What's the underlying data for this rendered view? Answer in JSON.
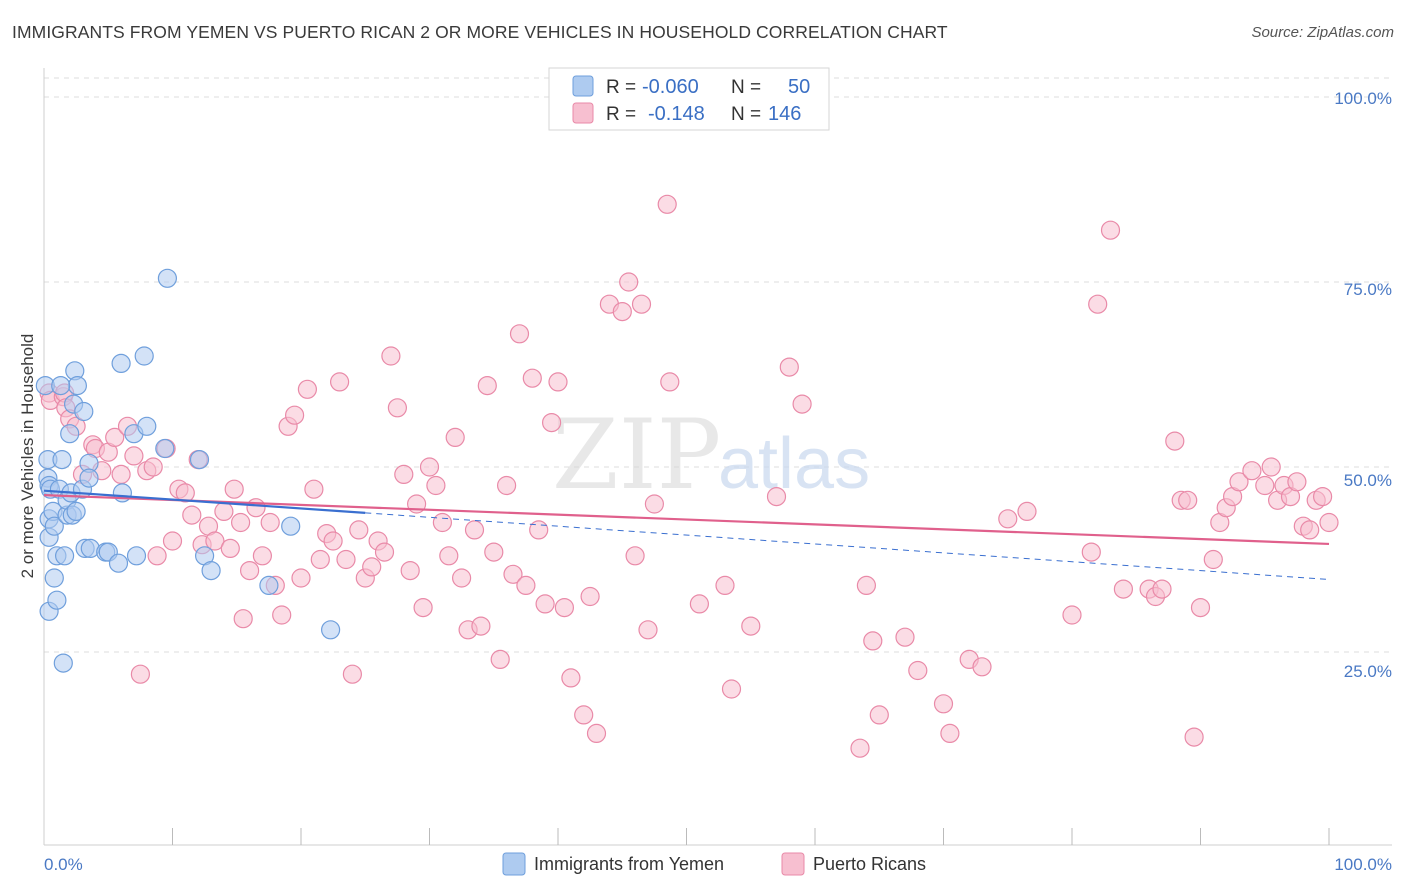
{
  "header": {
    "title": "IMMIGRANTS FROM YEMEN VS PUERTO RICAN 2 OR MORE VEHICLES IN HOUSEHOLD CORRELATION CHART",
    "source": "Source: ZipAtlas.com"
  },
  "legend": {
    "rows": [
      {
        "r_label": "R =",
        "r_value": "-0.060",
        "n_label": "N =",
        "n_value": "50"
      },
      {
        "r_label": "R =",
        "r_value": "-0.148",
        "n_label": "N =",
        "n_value": "146"
      }
    ]
  },
  "bottom_legend": {
    "series1": "Immigrants from Yemen",
    "series2": "Puerto Ricans"
  },
  "watermark": {
    "zip": "ZIP",
    "atlas": "atlas"
  },
  "colors": {
    "blue_fill": "#aecbf0",
    "blue_stroke": "#6f9fdc",
    "blue_line": "#3a6fd0",
    "pink_fill": "#f7bfd0",
    "pink_stroke": "#e98aa8",
    "pink_line": "#e0608c",
    "grid": "#dddddd",
    "axis_text": "#4a79c4"
  },
  "chart_data": {
    "type": "scatter",
    "title": "IMMIGRANTS FROM YEMEN VS PUERTO RICAN 2 OR MORE VEHICLES IN HOUSEHOLD CORRELATION CHART",
    "xlabel": "",
    "ylabel": "2 or more Vehicles in Household",
    "xlim": [
      0,
      100
    ],
    "ylim": [
      0,
      102
    ],
    "x_tick_labels": [
      "0.0%",
      "100.0%"
    ],
    "y_ticks": [
      25,
      50,
      75,
      100
    ],
    "y_tick_labels": [
      "25.0%",
      "50.0%",
      "75.0%",
      "100.0%"
    ],
    "series": [
      {
        "name": "Immigrants from Yemen",
        "R": -0.06,
        "N": 50,
        "trend": {
          "x0": 0,
          "y0": 46.8,
          "x1": 100,
          "y1": 34.8,
          "solid_until_x": 25
        },
        "points": [
          [
            0.1,
            61.0
          ],
          [
            0.3,
            51.0
          ],
          [
            0.3,
            48.5
          ],
          [
            0.4,
            47.5
          ],
          [
            0.4,
            43.0
          ],
          [
            0.4,
            40.5
          ],
          [
            0.4,
            30.5
          ],
          [
            0.5,
            47.0
          ],
          [
            0.7,
            44.0
          ],
          [
            0.8,
            42.0
          ],
          [
            0.8,
            35.0
          ],
          [
            1.0,
            32.0
          ],
          [
            1.0,
            38.0
          ],
          [
            1.2,
            47.0
          ],
          [
            1.4,
            51.0
          ],
          [
            1.5,
            23.5
          ],
          [
            1.6,
            38.0
          ],
          [
            1.8,
            43.5
          ],
          [
            1.8,
            45.5
          ],
          [
            2.0,
            54.5
          ],
          [
            2.1,
            46.5
          ],
          [
            2.2,
            43.5
          ],
          [
            2.3,
            58.5
          ],
          [
            2.4,
            63.0
          ],
          [
            2.5,
            44.0
          ],
          [
            2.6,
            61.0
          ],
          [
            3.0,
            47.0
          ],
          [
            3.1,
            57.5
          ],
          [
            3.2,
            39.0
          ],
          [
            3.5,
            50.5
          ],
          [
            3.5,
            48.5
          ],
          [
            3.6,
            39.0
          ],
          [
            4.8,
            38.5
          ],
          [
            5.0,
            38.5
          ],
          [
            5.8,
            37.0
          ],
          [
            6.0,
            64.0
          ],
          [
            6.1,
            46.5
          ],
          [
            7.0,
            54.5
          ],
          [
            7.2,
            38.0
          ],
          [
            7.8,
            65.0
          ],
          [
            8.0,
            55.5
          ],
          [
            9.4,
            52.5
          ],
          [
            9.6,
            75.5
          ],
          [
            12.1,
            51.0
          ],
          [
            12.5,
            38.0
          ],
          [
            13.0,
            36.0
          ],
          [
            17.5,
            34.0
          ],
          [
            19.2,
            42.0
          ],
          [
            22.3,
            28.0
          ],
          [
            1.3,
            61.0
          ]
        ]
      },
      {
        "name": "Puerto Ricans",
        "R": -0.148,
        "N": 146,
        "trend": {
          "x0": 0,
          "y0": 46.2,
          "x1": 100,
          "y1": 39.6
        },
        "points": [
          [
            0.4,
            60.0
          ],
          [
            0.5,
            59.0
          ],
          [
            1.5,
            59.5
          ],
          [
            1.6,
            60.0
          ],
          [
            1.7,
            58.0
          ],
          [
            2.0,
            56.5
          ],
          [
            2.5,
            55.5
          ],
          [
            3.0,
            49.0
          ],
          [
            3.8,
            53.0
          ],
          [
            4.0,
            52.5
          ],
          [
            4.5,
            49.5
          ],
          [
            5.0,
            52.0
          ],
          [
            5.5,
            54.0
          ],
          [
            6.0,
            49.0
          ],
          [
            6.5,
            55.5
          ],
          [
            7.0,
            51.5
          ],
          [
            7.5,
            22.0
          ],
          [
            8.0,
            49.5
          ],
          [
            8.5,
            50.0
          ],
          [
            8.8,
            38.0
          ],
          [
            9.5,
            52.5
          ],
          [
            10.0,
            40.0
          ],
          [
            10.5,
            47.0
          ],
          [
            11.0,
            46.5
          ],
          [
            11.5,
            43.5
          ],
          [
            12.0,
            51.0
          ],
          [
            12.3,
            39.5
          ],
          [
            12.8,
            42.0
          ],
          [
            13.3,
            40.0
          ],
          [
            14.0,
            44.0
          ],
          [
            14.5,
            39.0
          ],
          [
            14.8,
            47.0
          ],
          [
            15.3,
            42.5
          ],
          [
            15.5,
            29.5
          ],
          [
            16.0,
            36.0
          ],
          [
            16.5,
            44.5
          ],
          [
            17.0,
            38.0
          ],
          [
            17.6,
            42.5
          ],
          [
            18.0,
            34.0
          ],
          [
            18.5,
            30.0
          ],
          [
            19.0,
            55.5
          ],
          [
            19.5,
            57.0
          ],
          [
            20.0,
            35.0
          ],
          [
            20.5,
            60.5
          ],
          [
            21.0,
            47.0
          ],
          [
            21.5,
            37.5
          ],
          [
            22.0,
            41.0
          ],
          [
            22.5,
            40.0
          ],
          [
            23.0,
            61.5
          ],
          [
            23.5,
            37.5
          ],
          [
            24.0,
            22.0
          ],
          [
            24.5,
            41.5
          ],
          [
            25.0,
            35.0
          ],
          [
            25.5,
            36.5
          ],
          [
            26.0,
            40.0
          ],
          [
            26.5,
            38.5
          ],
          [
            27.0,
            65.0
          ],
          [
            27.5,
            58.0
          ],
          [
            28.0,
            49.0
          ],
          [
            28.5,
            36.0
          ],
          [
            29.0,
            45.0
          ],
          [
            29.5,
            31.0
          ],
          [
            30.0,
            50.0
          ],
          [
            30.5,
            47.5
          ],
          [
            31.0,
            42.5
          ],
          [
            31.5,
            38.0
          ],
          [
            32.0,
            54.0
          ],
          [
            32.5,
            35.0
          ],
          [
            33.0,
            28.0
          ],
          [
            33.5,
            41.5
          ],
          [
            34.0,
            28.5
          ],
          [
            34.5,
            61.0
          ],
          [
            35.0,
            38.5
          ],
          [
            35.5,
            24.0
          ],
          [
            36.0,
            47.5
          ],
          [
            36.5,
            35.5
          ],
          [
            37.0,
            68.0
          ],
          [
            37.5,
            34.0
          ],
          [
            38.0,
            62.0
          ],
          [
            38.5,
            41.5
          ],
          [
            39.0,
            31.5
          ],
          [
            39.5,
            56.0
          ],
          [
            40.0,
            61.5
          ],
          [
            40.5,
            31.0
          ],
          [
            41.0,
            21.5
          ],
          [
            42.0,
            16.5
          ],
          [
            42.5,
            32.5
          ],
          [
            43.0,
            14.0
          ],
          [
            44.0,
            72.0
          ],
          [
            45.0,
            71.0
          ],
          [
            45.5,
            75.0
          ],
          [
            46.0,
            38.0
          ],
          [
            46.5,
            72.0
          ],
          [
            47.0,
            28.0
          ],
          [
            47.5,
            45.0
          ],
          [
            48.5,
            85.5
          ],
          [
            48.7,
            61.5
          ],
          [
            51.0,
            31.5
          ],
          [
            53.0,
            34.0
          ],
          [
            53.5,
            20.0
          ],
          [
            55.0,
            28.5
          ],
          [
            57.0,
            46.0
          ],
          [
            58.0,
            63.5
          ],
          [
            59.0,
            58.5
          ],
          [
            63.5,
            12.0
          ],
          [
            64.0,
            34.0
          ],
          [
            64.5,
            26.5
          ],
          [
            65.0,
            16.5
          ],
          [
            67.0,
            27.0
          ],
          [
            68.0,
            22.5
          ],
          [
            70.0,
            18.0
          ],
          [
            70.5,
            14.0
          ],
          [
            72.0,
            24.0
          ],
          [
            73.0,
            23.0
          ],
          [
            75.0,
            43.0
          ],
          [
            76.5,
            44.0
          ],
          [
            80.0,
            30.0
          ],
          [
            81.5,
            38.5
          ],
          [
            82.0,
            72.0
          ],
          [
            83.0,
            82.0
          ],
          [
            84.0,
            33.5
          ],
          [
            86.0,
            33.5
          ],
          [
            86.5,
            32.5
          ],
          [
            87.0,
            33.5
          ],
          [
            88.0,
            53.5
          ],
          [
            88.5,
            45.5
          ],
          [
            89.0,
            45.5
          ],
          [
            89.5,
            13.5
          ],
          [
            90.0,
            31.0
          ],
          [
            91.0,
            37.5
          ],
          [
            91.5,
            42.5
          ],
          [
            92.0,
            44.5
          ],
          [
            92.5,
            46.0
          ],
          [
            93.0,
            48.0
          ],
          [
            94.0,
            49.5
          ],
          [
            95.0,
            47.5
          ],
          [
            95.5,
            50.0
          ],
          [
            96.0,
            45.5
          ],
          [
            96.5,
            47.5
          ],
          [
            97.0,
            46.0
          ],
          [
            97.5,
            48.0
          ],
          [
            98.0,
            42.0
          ],
          [
            98.5,
            41.5
          ],
          [
            99.0,
            45.5
          ],
          [
            99.5,
            46.0
          ],
          [
            100.0,
            42.5
          ]
        ]
      }
    ]
  }
}
